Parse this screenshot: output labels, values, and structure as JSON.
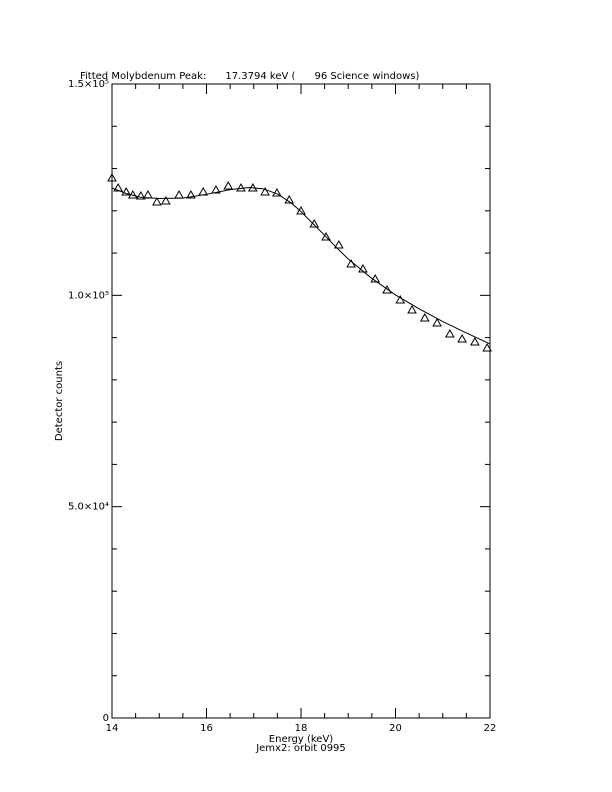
{
  "chart_data": {
    "type": "scatter",
    "title": "Fitted Molybdenum Peak:      17.3794 keV (      96 Science windows)",
    "xlabel": "Energy (keV)",
    "subtitle": "Jemx2: orbit 0995",
    "ylabel": "Detector counts",
    "xlim": [
      14,
      22
    ],
    "xticks": [
      14,
      16,
      18,
      20,
      22
    ],
    "x_minor": 4,
    "ylim": [
      0,
      150000
    ],
    "yticks": [
      0,
      {
        "value": 50000,
        "label": "5.0×10⁴"
      },
      {
        "value": 100000,
        "label": "1.0×10⁵"
      },
      {
        "value": 150000,
        "label": "1.5×10⁵"
      }
    ],
    "y_minor": 5,
    "color": "#000000",
    "series": [
      {
        "style": "markers",
        "marker": "triangle",
        "x": [
          14.0,
          14.13,
          14.3,
          14.44,
          14.61,
          14.76,
          14.95,
          15.14,
          15.42,
          15.67,
          15.93,
          16.2,
          16.46,
          16.73,
          16.98,
          17.24,
          17.49,
          17.75,
          18.0,
          18.28,
          18.53,
          18.8,
          19.06,
          19.31,
          19.57,
          19.82,
          20.1,
          20.35,
          20.62,
          20.88,
          21.15,
          21.41,
          21.68,
          21.94
        ],
        "values": [
          127760,
          125400,
          124450,
          123740,
          123500,
          123740,
          122080,
          122320,
          123740,
          123740,
          124450,
          124920,
          125870,
          125400,
          125400,
          124450,
          124210,
          122560,
          119960,
          116880,
          113800,
          111910,
          107420,
          106230,
          103870,
          101270,
          98900,
          96530,
          94640,
          93460,
          90860,
          89670,
          88960,
          87540
        ]
      },
      {
        "style": "line",
        "x": [
          14.0,
          14.3,
          14.6,
          15.0,
          15.5,
          16.0,
          16.5,
          16.9,
          17.2,
          17.5,
          17.8,
          18.0,
          18.25,
          18.5,
          18.75,
          19.0,
          19.5,
          20.0,
          20.5,
          21.0,
          21.5,
          22.0
        ],
        "values": [
          125400,
          124100,
          123200,
          122900,
          123000,
          123900,
          125000,
          125500,
          125200,
          124000,
          121800,
          119800,
          117000,
          114200,
          111300,
          108600,
          104000,
          100100,
          96800,
          93800,
          91100,
          88500
        ]
      }
    ]
  }
}
